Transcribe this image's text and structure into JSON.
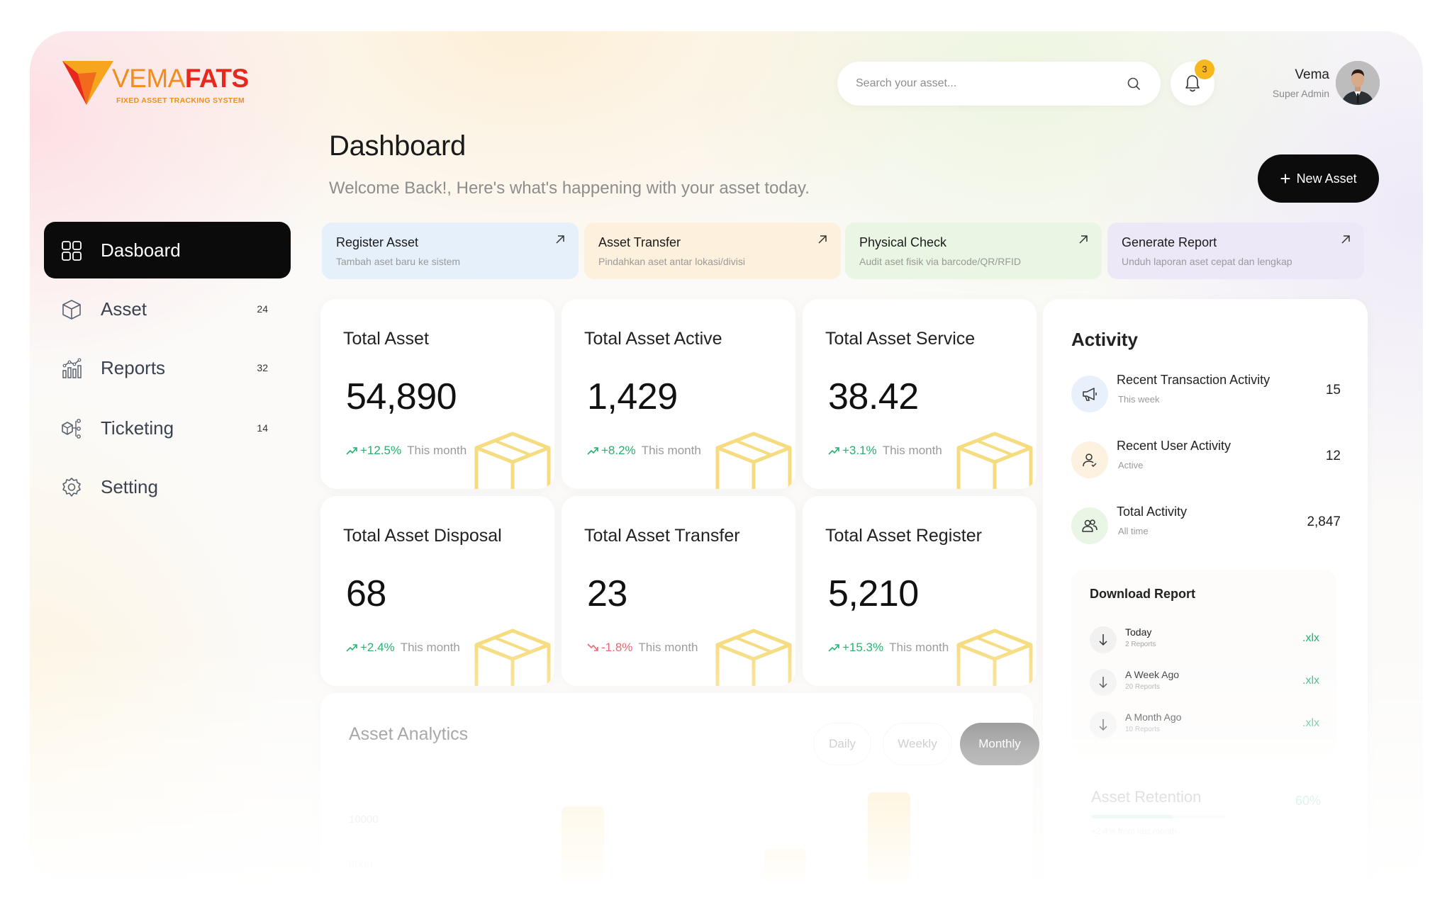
{
  "brand": {
    "name_part1": "VEMA",
    "name_part2": "FATS",
    "tagline": "FIXED ASSET TRACKING SYSTEM"
  },
  "header": {
    "search_placeholder": "Search your asset...",
    "notification_count": "3",
    "user_name": "Vema",
    "user_role": "Super Admin"
  },
  "page": {
    "title": "Dashboard",
    "subtitle": "Welcome Back!, Here's what's happening with your asset today.",
    "new_asset_label": "New Asset"
  },
  "sidebar": {
    "items": [
      {
        "label": "Dasboard",
        "count": "",
        "icon": "grid-icon",
        "active": true
      },
      {
        "label": "Asset",
        "count": "24",
        "icon": "cube-icon"
      },
      {
        "label": "Reports",
        "count": "32",
        "icon": "bar-chart-icon"
      },
      {
        "label": "Ticketing",
        "count": "14",
        "icon": "workflow-icon"
      },
      {
        "label": "Setting",
        "count": "",
        "icon": "gear-icon"
      }
    ]
  },
  "quick_actions": [
    {
      "title": "Register Asset",
      "subtitle": "Tambah aset baru ke sistem",
      "color": "#e6f0fb",
      "icon": "arrow-up-right-icon"
    },
    {
      "title": "Asset Transfer",
      "subtitle": "Pindahkan aset antar lokasi/divisi",
      "color": "#fdf0dc",
      "icon": "arrow-up-right-icon"
    },
    {
      "title": "Physical Check",
      "subtitle": "Audit aset fisik via barcode/QR/RFID",
      "color": "#e9f6e3",
      "icon": "arrow-up-right-icon"
    },
    {
      "title": "Generate Report",
      "subtitle": "Unduh laporan aset cepat dan lengkap",
      "color": "#ece8f8",
      "icon": "arrow-up-right-icon"
    }
  ],
  "stats": [
    {
      "title": "Total Asset",
      "value": "54,890",
      "change": "+12.5%",
      "period": "This month",
      "trend": "up"
    },
    {
      "title": "Total Asset Active",
      "value": "1,429",
      "change": "+8.2%",
      "period": "This month",
      "trend": "up"
    },
    {
      "title": "Total Asset Service",
      "value": "38.42",
      "change": "+3.1%",
      "period": "This month",
      "trend": "up"
    },
    {
      "title": "Total Asset Disposal",
      "value": "68",
      "change": "+2.4%",
      "period": "This month",
      "trend": "up"
    },
    {
      "title": "Total Asset Transfer",
      "value": "23",
      "change": "-1.8%",
      "period": "This month",
      "trend": "down"
    },
    {
      "title": "Total Asset Register",
      "value": "5,210",
      "change": "+15.3%",
      "period": "This month",
      "trend": "up"
    }
  ],
  "activity": {
    "title": "Activity",
    "items": [
      {
        "name": "Recent Transaction Activity",
        "sub": "This week",
        "value": "15",
        "icon": "megaphone-icon",
        "color": "#e8f1fb"
      },
      {
        "name": "Recent User Activity",
        "sub": "Active",
        "value": "12",
        "icon": "user-icon",
        "color": "#fdf1e0"
      },
      {
        "name": "Total Activity",
        "sub": "All time",
        "value": "2,847",
        "icon": "users-icon",
        "color": "#e9f6e6"
      }
    ]
  },
  "download_report": {
    "title": "Download Report",
    "items": [
      {
        "name": "Today",
        "sub": "2 Reports",
        "format": ".xlx"
      },
      {
        "name": "A Week Ago",
        "sub": "20 Reports",
        "format": ".xlx"
      },
      {
        "name": "A Month Ago",
        "sub": "10 Reports",
        "format": ".xlx"
      }
    ]
  },
  "retention": {
    "title": "Asset Retention",
    "value": "60%",
    "note": "+2.4% from last month"
  },
  "analytics": {
    "title": "Asset Analytics",
    "tabs": [
      "Daily",
      "Weekly",
      "Monthly"
    ],
    "active_tab": "Monthly",
    "y_tick_top": "10000",
    "y_tick_low": "5000"
  },
  "colors": {
    "accent_dark": "#0b0b0b",
    "positive": "#22b26b",
    "negative": "#e8636d",
    "box_icon": "#f5d66a",
    "badge": "#f6b81c"
  }
}
